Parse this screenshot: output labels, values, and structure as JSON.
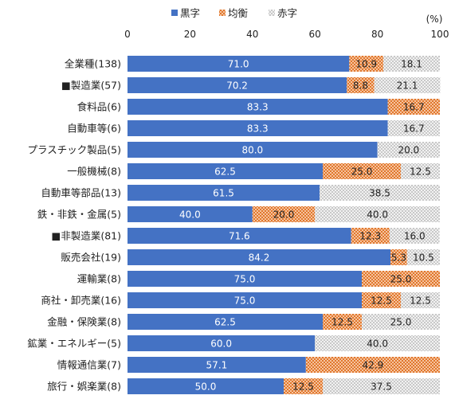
{
  "chart_data": {
    "type": "bar",
    "orientation": "horizontal",
    "stacked": true,
    "unit_label": "(%)",
    "xlim": [
      0,
      100
    ],
    "xticks": [
      "0",
      "20",
      "40",
      "60",
      "80",
      "100"
    ],
    "grid": false,
    "legend_position": "top",
    "categories": [
      "全業種(138)",
      "■製造業(57)",
      "食料品(6)",
      "自動車等(6)",
      "プラスチック製品(5)",
      "一般機械(8)",
      "自動車等部品(13)",
      "鉄・非鉄・金属(5)",
      "■非製造業(81)",
      "販売会社(19)",
      "運輸業(8)",
      "商社・卸売業(16)",
      "金融・保険業(8)",
      "鉱業・エネルギー(5)",
      "情報通信業(7)",
      "旅行・娯楽業(8)"
    ],
    "series": [
      {
        "name": "黒字",
        "color": "#4472c4",
        "pattern": "solid",
        "values": [
          71.0,
          70.2,
          83.3,
          83.3,
          80.0,
          62.5,
          61.5,
          40.0,
          71.6,
          84.2,
          75.0,
          75.0,
          62.5,
          60.0,
          57.1,
          50.0
        ],
        "labels": [
          "71.0",
          "70.2",
          "83.3",
          "83.3",
          "80.0",
          "62.5",
          "61.5",
          "40.0",
          "71.6",
          "84.2",
          "75.0",
          "75.0",
          "62.5",
          "60.0",
          "57.1",
          "50.0"
        ]
      },
      {
        "name": "均衡",
        "color": "#ed7d31",
        "pattern": "checker",
        "values": [
          10.9,
          8.8,
          16.7,
          0,
          0,
          25.0,
          0,
          20.0,
          12.3,
          5.3,
          25.0,
          12.5,
          12.5,
          0,
          42.9,
          12.5
        ],
        "labels": [
          "10.9",
          "8.8",
          "16.7",
          "",
          "",
          "25.0",
          "",
          "20.0",
          "12.3",
          "5.3",
          "25.0",
          "12.5",
          "12.5",
          "",
          "42.9",
          "12.5"
        ]
      },
      {
        "name": "赤字",
        "color": "#bfbfbf",
        "pattern": "checker",
        "values": [
          18.1,
          21.1,
          0,
          16.7,
          20.0,
          12.5,
          38.5,
          40.0,
          16.0,
          10.5,
          0,
          12.5,
          25.0,
          40.0,
          0,
          37.5
        ],
        "labels": [
          "18.1",
          "21.1",
          "",
          "16.7",
          "20.0",
          "12.5",
          "38.5",
          "40.0",
          "16.0",
          "10.5",
          "",
          "12.5",
          "25.0",
          "40.0",
          "",
          "37.5"
        ]
      }
    ]
  }
}
